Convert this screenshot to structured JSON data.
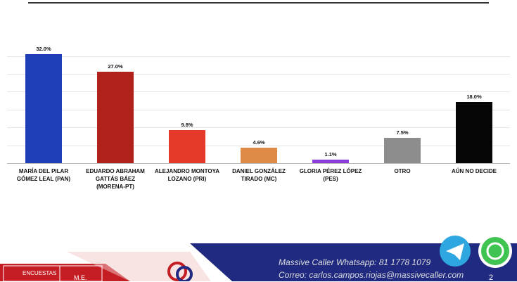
{
  "chart_data": {
    "type": "bar",
    "categories": [
      "MARÍA DEL PILAR GÓMEZ LEAL (PAN)",
      "EDUARDO ABRAHAM GATTÁS BÁEZ (MORENA-PT)",
      "ALEJANDRO MONTOYA LOZANO (PRI)",
      "DANIEL GONZÁLEZ TIRADO (MC)",
      "GLORIA PÉREZ LÓPEZ (PES)",
      "OTRO",
      "AÚN NO DECIDE"
    ],
    "values": [
      32.0,
      27.0,
      9.8,
      4.6,
      1.1,
      7.5,
      18.0
    ],
    "value_labels": [
      "32.0%",
      "27.0%",
      "9.8%",
      "4.6%",
      "1.1%",
      "7.5%",
      "18.0%"
    ],
    "colors": [
      "#1e3fb8",
      "#b0211c",
      "#e5392a",
      "#de8a47",
      "#8b3bd8",
      "#8d8d8d",
      "#050505"
    ],
    "ylim": [
      0,
      35
    ]
  },
  "footer": {
    "whatsapp": "Massive Caller Whatsapp:  81 1778 1079",
    "email": "Correo:  carlos.campos.riojas@massivecaller.com",
    "page": "2",
    "left_box": "ENCUESTAS",
    "left_box2": "M.E."
  }
}
